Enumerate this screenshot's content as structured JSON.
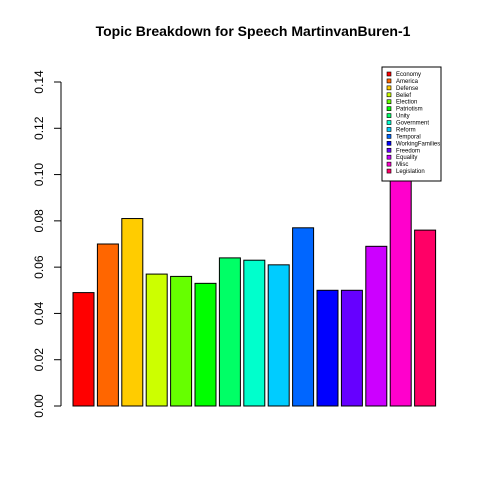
{
  "chart_data": {
    "type": "bar",
    "title": "Topic Breakdown for Speech MartinvanBuren-1",
    "xlabel": "",
    "ylabel": "",
    "ylim": [
      0,
      0.14
    ],
    "yticks": [
      "0.00",
      "0.02",
      "0.04",
      "0.06",
      "0.08",
      "0.10",
      "0.12",
      "0.14"
    ],
    "ytick_values": [
      0,
      0.02,
      0.04,
      0.06,
      0.08,
      0.1,
      0.12,
      0.14
    ],
    "legend_position": "top-right",
    "grid": false,
    "categories": [
      "Economy",
      "America",
      "Defense",
      "Belief",
      "Election",
      "Patriotism",
      "Unity",
      "Government",
      "Reform",
      "Temporal",
      "WorkingFamilies",
      "Freedom",
      "Equality",
      "Misc",
      "Legislation"
    ],
    "values": [
      0.049,
      0.07,
      0.081,
      0.057,
      0.056,
      0.053,
      0.064,
      0.063,
      0.061,
      0.077,
      0.05,
      0.05,
      0.069,
      0.111,
      0.076
    ],
    "colors": [
      "#FF0000",
      "#FF6600",
      "#FFCC00",
      "#CCFF00",
      "#66FF00",
      "#00FF00",
      "#00FF66",
      "#00FFCC",
      "#00CCFF",
      "#0066FF",
      "#0000FF",
      "#6600FF",
      "#CC00FF",
      "#FF00CC",
      "#FF0066"
    ]
  }
}
